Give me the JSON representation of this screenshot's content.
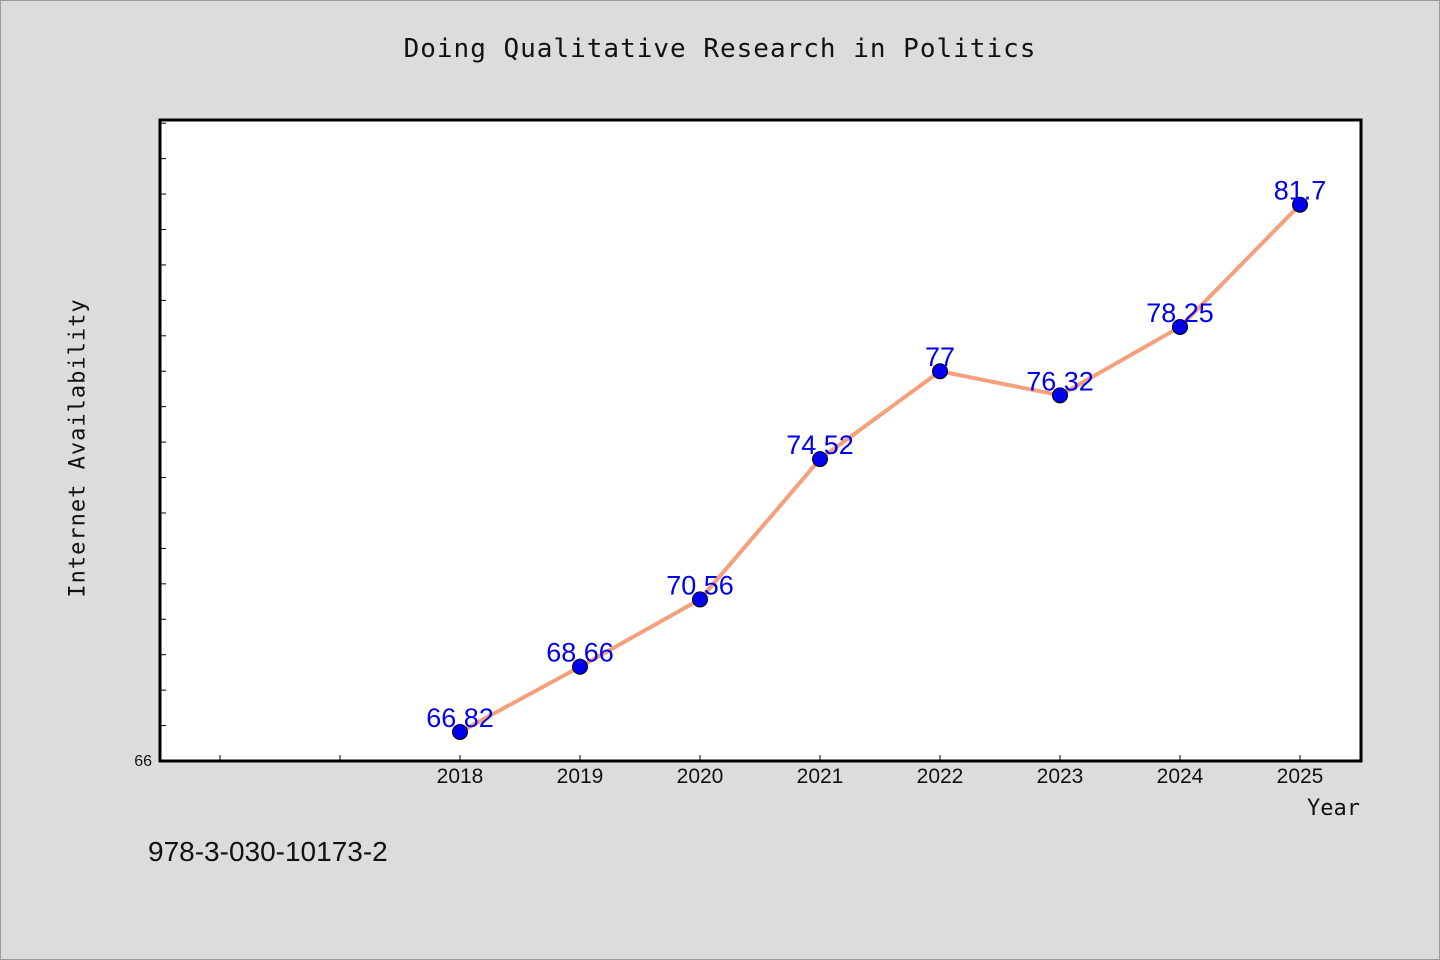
{
  "chart_data": {
    "type": "line",
    "title": "Doing Qualitative Research in Politics",
    "xlabel": "Year",
    "ylabel": "Internet Availability",
    "x": [
      "2018",
      "2019",
      "2020",
      "2021",
      "2022",
      "2023",
      "2024",
      "2025"
    ],
    "series": [
      {
        "values": [
          66.82,
          68.66,
          70.56,
          74.52,
          77,
          76.32,
          78.25,
          81.7
        ],
        "labels": [
          "66.82",
          "68.66",
          "70.56",
          "74.52",
          "77",
          "76.32",
          "78.25",
          "81.7"
        ],
        "line_color": "#f4a07c",
        "marker_color": "#0000ee"
      }
    ],
    "ylim": [
      66,
      84
    ],
    "y_tick_labels": [
      "66"
    ],
    "grid": false,
    "label_color": "#0000ee"
  },
  "footer": {
    "isbn": "978-3-030-10173-2"
  }
}
